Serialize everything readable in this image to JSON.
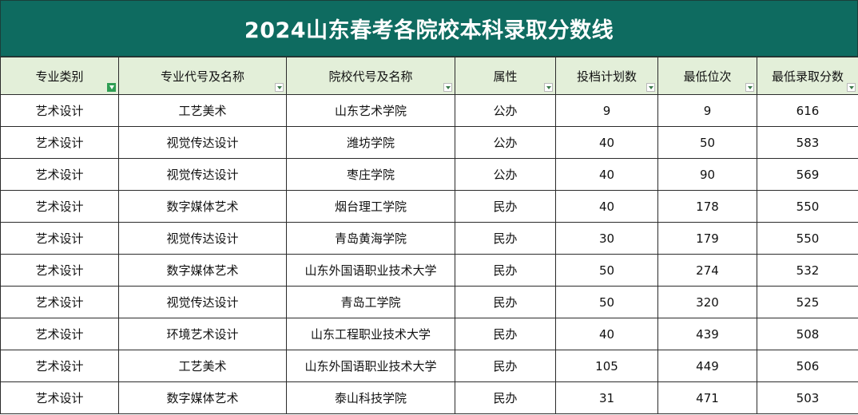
{
  "title": "2024山东春考各院校本科录取分数线",
  "columns": [
    {
      "label": "专业类别",
      "filter": "active"
    },
    {
      "label": "专业代号及名称",
      "filter": "dropdown"
    },
    {
      "label": "院校代号及名称",
      "filter": "dropdown"
    },
    {
      "label": "属性",
      "filter": "dropdown"
    },
    {
      "label": "投档计划数",
      "filter": "dropdown"
    },
    {
      "label": "最低位次",
      "filter": "dropdown"
    },
    {
      "label": "最低录取分数",
      "filter": "dropdown"
    }
  ],
  "rows": [
    [
      "艺术设计",
      "工艺美术",
      "山东艺术学院",
      "公办",
      "9",
      "9",
      "616"
    ],
    [
      "艺术设计",
      "视觉传达设计",
      "潍坊学院",
      "公办",
      "40",
      "50",
      "583"
    ],
    [
      "艺术设计",
      "视觉传达设计",
      "枣庄学院",
      "公办",
      "40",
      "90",
      "569"
    ],
    [
      "艺术设计",
      "数字媒体艺术",
      "烟台理工学院",
      "民办",
      "40",
      "178",
      "550"
    ],
    [
      "艺术设计",
      "视觉传达设计",
      "青岛黄海学院",
      "民办",
      "30",
      "179",
      "550"
    ],
    [
      "艺术设计",
      "数字媒体艺术",
      "山东外国语职业技术大学",
      "民办",
      "50",
      "274",
      "532"
    ],
    [
      "艺术设计",
      "视觉传达设计",
      "青岛工学院",
      "民办",
      "50",
      "320",
      "525"
    ],
    [
      "艺术设计",
      "环境艺术设计",
      "山东工程职业技术大学",
      "民办",
      "40",
      "439",
      "508"
    ],
    [
      "艺术设计",
      "工艺美术",
      "山东外国语职业技术大学",
      "民办",
      "105",
      "449",
      "506"
    ],
    [
      "艺术设计",
      "数字媒体艺术",
      "泰山科技学院",
      "民办",
      "31",
      "471",
      "503"
    ]
  ],
  "colors": {
    "title_background": "#0e6b60",
    "header_background": "#e3efd9",
    "filter_active": "#2f9e54"
  },
  "icons": {
    "active_filter": "funnel-filter-icon",
    "dropdown_filter": "dropdown-arrow-icon"
  }
}
